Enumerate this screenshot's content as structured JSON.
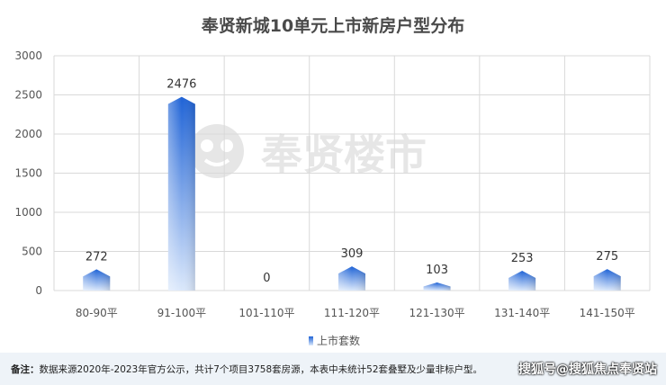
{
  "title": "奉贤新城10单元上市新房户型分布",
  "watermark": "奉贤楼市",
  "legend_label": "上市套数",
  "colors": {
    "bar_top": "#1f63d6",
    "bar_bottom": "#d9e7fb",
    "grid": "#d9d9d9",
    "text": "#555555"
  },
  "chart_data": {
    "type": "bar",
    "title": "奉贤新城10单元上市新房户型分布",
    "categories": [
      "80-90平",
      "91-100平",
      "101-110平",
      "111-120平",
      "121-130平",
      "131-140平",
      "141-150平"
    ],
    "series": [
      {
        "name": "上市套数",
        "values": [
          272,
          2476,
          0,
          309,
          103,
          253,
          275
        ]
      }
    ],
    "yticks": [
      0,
      500,
      1000,
      1500,
      2000,
      2500,
      3000
    ],
    "ylim": [
      0,
      3000
    ],
    "grid": true,
    "legend": "bottom"
  },
  "footer": {
    "note_label": "备注：",
    "note_text": "数据来源2020年-2023年官方公示，共计7个项目3758套房源，本表中未统计52套叠墅及少量非标户型。",
    "source": "搜狐号@搜狐焦点奉贤站"
  }
}
